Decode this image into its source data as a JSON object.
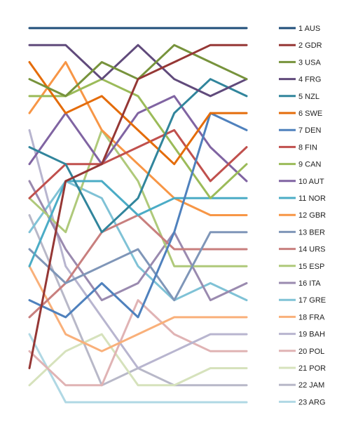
{
  "chart_data": {
    "type": "line",
    "subtype": "bump",
    "title": "",
    "xlabel": "",
    "ylabel": "",
    "x": [
      1,
      2,
      3,
      4,
      5,
      6,
      7
    ],
    "ylim": [
      1,
      23
    ],
    "y_inverted": true,
    "grid": false,
    "legend_position": "right",
    "series": [
      {
        "name": "1 AUS",
        "color": "#1f4e79",
        "values": [
          1,
          1,
          1,
          1,
          1,
          1,
          1
        ]
      },
      {
        "name": "2 GDR",
        "color": "#953735",
        "values": [
          21,
          10,
          9,
          4,
          3,
          2,
          2
        ]
      },
      {
        "name": "3 USA",
        "color": "#77933c",
        "values": [
          4,
          5,
          3,
          4,
          2,
          3,
          4
        ]
      },
      {
        "name": "4 FRG",
        "color": "#604a7b",
        "values": [
          2,
          2,
          4,
          2,
          4,
          5,
          4
        ]
      },
      {
        "name": "5 NZL",
        "color": "#31859c",
        "values": [
          8,
          9,
          13,
          11,
          6,
          4,
          5
        ]
      },
      {
        "name": "6 SWE",
        "color": "#e46c0a",
        "values": [
          3,
          6,
          5,
          7,
          9,
          6,
          6
        ]
      },
      {
        "name": "7 DEN",
        "color": "#4f81bd",
        "values": [
          17,
          18,
          16,
          18,
          13,
          6,
          7
        ]
      },
      {
        "name": "8 FIN",
        "color": "#c0504d",
        "values": [
          11,
          9,
          9,
          8,
          7,
          10,
          8
        ]
      },
      {
        "name": "9 CAN",
        "color": "#9bbb59",
        "values": [
          5,
          5,
          4,
          5,
          8,
          11,
          9
        ]
      },
      {
        "name": "10 AUT",
        "color": "#8064a2",
        "values": [
          9,
          6,
          9,
          6,
          5,
          8,
          10
        ]
      },
      {
        "name": "11 NOR",
        "color": "#4bacc6",
        "values": [
          15,
          10,
          10,
          12,
          11,
          11,
          11
        ]
      },
      {
        "name": "12 GBR",
        "color": "#f79646",
        "values": [
          6,
          3,
          7,
          9,
          11,
          12,
          12
        ]
      },
      {
        "name": "13 BER",
        "color": "#7f96b8",
        "values": [
          14,
          16,
          15,
          14,
          17,
          13,
          13
        ]
      },
      {
        "name": "14 URS",
        "color": "#c87f7e",
        "values": [
          18,
          16,
          13,
          12,
          14,
          14,
          14
        ]
      },
      {
        "name": "15 ESP",
        "color": "#afc97a",
        "values": [
          11,
          13,
          7,
          10,
          15,
          15,
          15
        ]
      },
      {
        "name": "16 ITA",
        "color": "#9a8aaf",
        "values": [
          10,
          14,
          17,
          16,
          13,
          17,
          16
        ]
      },
      {
        "name": "17 GRE",
        "color": "#7fc2d6",
        "values": [
          13,
          10,
          11,
          15,
          17,
          16,
          17
        ]
      },
      {
        "name": "18 FRA",
        "color": "#f9b07a",
        "values": [
          15,
          19,
          20,
          19,
          18,
          18,
          18
        ]
      },
      {
        "name": "19 BAH",
        "color": "#b8b5cf",
        "values": [
          7,
          15,
          18,
          21,
          20,
          19,
          19
        ]
      },
      {
        "name": "20 POL",
        "color": "#e0b3b4",
        "values": [
          20,
          22,
          22,
          17,
          19,
          20,
          20
        ]
      },
      {
        "name": "21 POR",
        "color": "#d6e2bc",
        "values": [
          22,
          20,
          19,
          22,
          22,
          21,
          21
        ]
      },
      {
        "name": "22 JAM",
        "color": "#b8b8c8",
        "values": [
          12,
          17,
          22,
          21,
          22,
          22,
          22
        ]
      },
      {
        "name": "23 ARG",
        "color": "#b0d8e4",
        "values": [
          19,
          23,
          23,
          23,
          23,
          23,
          23
        ]
      }
    ]
  }
}
